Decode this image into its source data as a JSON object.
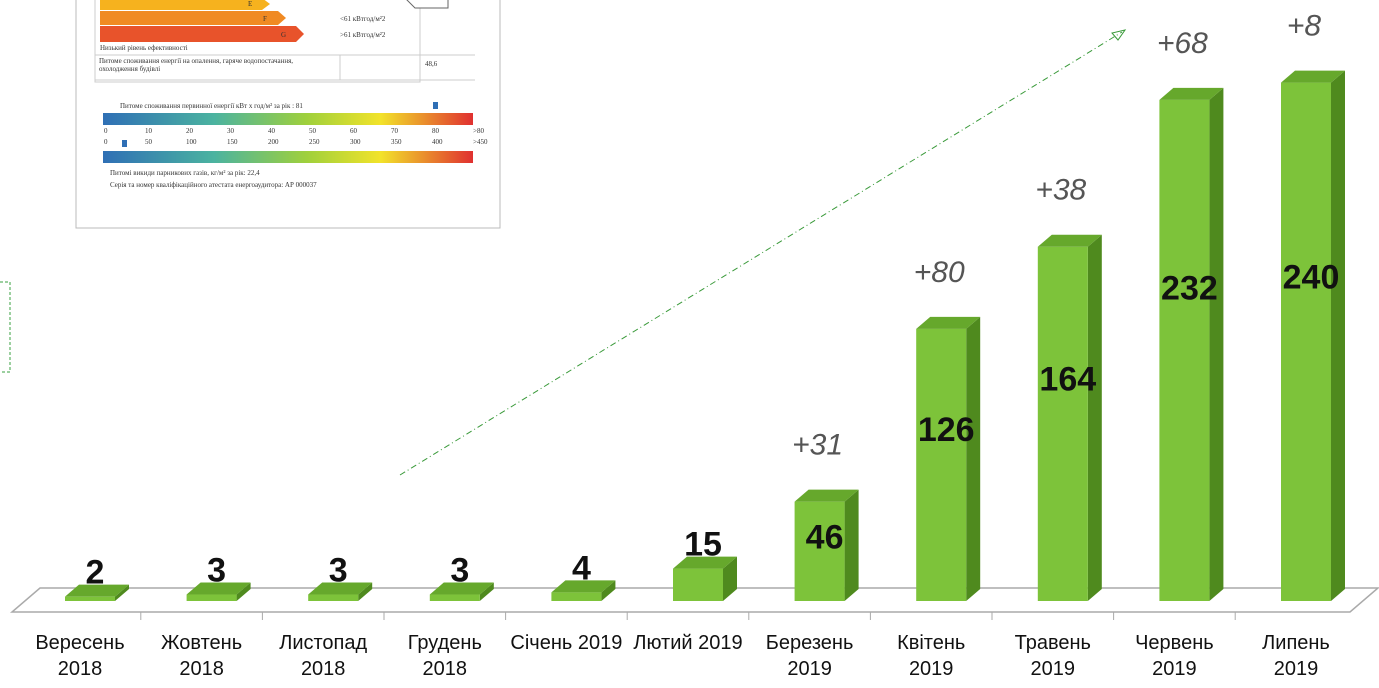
{
  "chart_data": {
    "type": "bar3d",
    "categories": [
      "Вересень 2018",
      "Жовтень 2018",
      "Листопад 2018",
      "Грудень 2018",
      "Січень 2019",
      "Лютий 2019",
      "Березень 2019",
      "Квітень 2019",
      "Травень 2019",
      "Червень 2019",
      "Липень 2019"
    ],
    "values": [
      2,
      3,
      3,
      3,
      4,
      15,
      46,
      126,
      164,
      232,
      240
    ],
    "color": "#7dc33a",
    "annotations": [
      "+31",
      "+80",
      "+38",
      "+68",
      "+8"
    ]
  },
  "inset": {
    "classes": [
      "E",
      "F",
      "G"
    ],
    "class_notes": [
      "<61 кВтгод/м²2",
      ">61 кВтгод/м²2"
    ],
    "low_efficiency": "Низький рівень ефективності",
    "specific_label": "Питоме споживання енергії на опалення, гаряче водопостачання, охолодження будівлі",
    "specific_value": "48,6",
    "primary": "Питоме споживання первинної енергії кВт х год/м² за рік : 81",
    "scale_top": [
      "0",
      "10",
      "20",
      "30",
      "40",
      "50",
      "60",
      "70",
      "80",
      ">80"
    ],
    "scale_bottom": [
      "0",
      "50",
      "100",
      "150",
      "200",
      "250",
      "300",
      "350",
      "400",
      ">450"
    ],
    "emissions": "Питомі викиди парникових газів, кг/м² за рік: 22,4",
    "certificate": "Серія та номер кваліфікаційного атестата енергоаудитора: АР 000037"
  }
}
